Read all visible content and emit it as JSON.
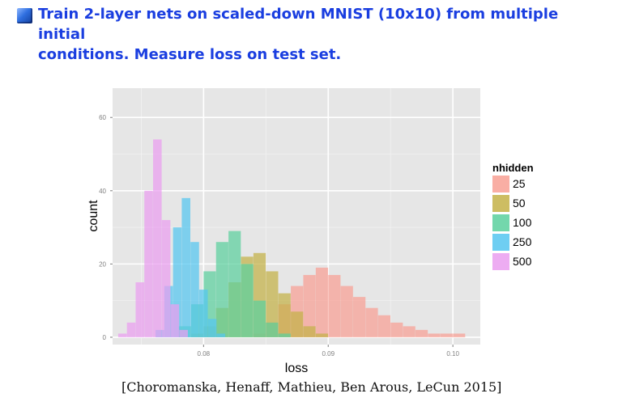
{
  "slide": {
    "headline_line1": "Train 2-layer nets on scaled-down MNIST (10x10) from multiple initial",
    "headline_line2": "conditions. Measure loss on test set.",
    "citation": "[Choromanska, Henaff, Mathieu, Ben Arous, LeCun 2015]"
  },
  "chart_data": {
    "type": "bar",
    "subtype": "overlapping-histogram",
    "xlabel": "loss",
    "ylabel": "count",
    "xlim": [
      0.0727,
      0.1022
    ],
    "ylim": [
      -2,
      68
    ],
    "xticks": [
      {
        "value": 0.08,
        "label": "0.08"
      },
      {
        "value": 0.09,
        "label": "0.09"
      },
      {
        "value": 0.1,
        "label": "0.10"
      }
    ],
    "yticks": [
      {
        "value": 0,
        "label": "0"
      },
      {
        "value": 20,
        "label": "20"
      },
      {
        "value": 40,
        "label": "40"
      },
      {
        "value": 60,
        "label": "60"
      }
    ],
    "grid": true,
    "panel_background": "#e6e6e6",
    "legend": {
      "title": "nhidden",
      "position": "right",
      "items": [
        {
          "label": "25",
          "color": "#f8a094"
        },
        {
          "label": "50",
          "color": "#c4b246"
        },
        {
          "label": "100",
          "color": "#5bd09e"
        },
        {
          "label": "250",
          "color": "#55c6f0"
        },
        {
          "label": "500",
          "color": "#ea9ef0"
        }
      ]
    },
    "series": [
      {
        "name": "25",
        "color": "#f8a094",
        "x": [
          0.0845,
          0.0855,
          0.0865,
          0.0875,
          0.0885,
          0.0895,
          0.0905,
          0.0915,
          0.0925,
          0.0935,
          0.0945,
          0.0955,
          0.0965,
          0.0975,
          0.0985,
          0.0995,
          0.1005
        ],
        "values": [
          1,
          4,
          9,
          14,
          17,
          19,
          17,
          14,
          11,
          8,
          6,
          4,
          3,
          2,
          1,
          1,
          1
        ]
      },
      {
        "name": "50",
        "color": "#c4b246",
        "x": [
          0.0795,
          0.0805,
          0.0815,
          0.0825,
          0.0835,
          0.0845,
          0.0855,
          0.0865,
          0.0875,
          0.0885,
          0.0895
        ],
        "values": [
          1,
          3,
          8,
          15,
          22,
          23,
          18,
          12,
          7,
          3,
          1
        ]
      },
      {
        "name": "100",
        "color": "#5bd09e",
        "x": [
          0.0785,
          0.0795,
          0.0805,
          0.0815,
          0.0825,
          0.0835,
          0.0845,
          0.0855,
          0.0865
        ],
        "values": [
          3,
          9,
          18,
          26,
          29,
          20,
          10,
          4,
          1
        ]
      },
      {
        "name": "250",
        "color": "#55c6f0",
        "x": [
          0.0765,
          0.0772,
          0.0779,
          0.0786,
          0.0793,
          0.08,
          0.0807,
          0.0814
        ],
        "values": [
          2,
          14,
          30,
          38,
          26,
          13,
          5,
          1
        ]
      },
      {
        "name": "500",
        "color": "#ea9ef0",
        "x": [
          0.0735,
          0.0742,
          0.0749,
          0.0756,
          0.0763,
          0.077,
          0.0777,
          0.0784
        ],
        "values": [
          1,
          4,
          15,
          40,
          54,
          32,
          9,
          2
        ]
      }
    ]
  }
}
